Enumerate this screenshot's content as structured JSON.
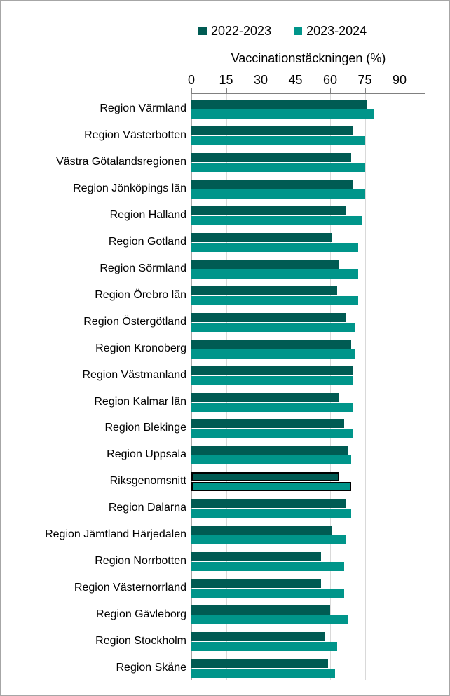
{
  "legend": [
    {
      "label": "2022-2023",
      "color": "#005b53"
    },
    {
      "label": "2023-2024",
      "color": "#00958a"
    }
  ],
  "colors": {
    "series_dark": "#005b53",
    "series_light": "#00958a",
    "gridline": "#d9d9d9",
    "axis_line": "#808080",
    "highlight_outline": "#000000"
  },
  "chart_data": {
    "type": "bar",
    "orientation": "horizontal",
    "title": "Vaccinationstäckningen (%)",
    "xlabel": "Vaccinationstäckningen (%)",
    "ylabel": "",
    "xlim": [
      0,
      101
    ],
    "x_ticks": [
      0,
      15,
      30,
      45,
      60,
      75,
      90
    ],
    "grid": true,
    "legend_position": "top",
    "axis_position": "top",
    "highlighted_category": "Riksgenomsnitt",
    "categories": [
      "Region Värmland",
      "Region Västerbotten",
      "Västra Götalandsregionen",
      "Region Jönköpings län",
      "Region Halland",
      "Region Gotland",
      "Region Sörmland",
      "Region Örebro län",
      "Region Östergötland",
      "Region Kronoberg",
      "Region Västmanland",
      "Region Kalmar län",
      "Region Blekinge",
      "Region Uppsala",
      "Riksgenomsnitt",
      "Region Dalarna",
      "Region Jämtland Härjedalen",
      "Region Norrbotten",
      "Region Västernorrland",
      "Region Gävleborg",
      "Region Stockholm",
      "Region Skåne"
    ],
    "series": [
      {
        "name": "2022-2023",
        "color": "#005b53",
        "values": [
          76,
          70,
          69,
          70,
          67,
          61,
          64,
          63,
          67,
          69,
          70,
          64,
          66,
          68,
          64,
          67,
          61,
          56,
          56,
          60,
          58,
          59
        ]
      },
      {
        "name": "2023-2024",
        "color": "#00958a",
        "values": [
          79,
          75,
          75,
          75,
          74,
          72,
          72,
          72,
          71,
          71,
          70,
          70,
          70,
          69,
          69,
          69,
          67,
          66,
          66,
          68,
          63,
          62
        ]
      }
    ]
  }
}
